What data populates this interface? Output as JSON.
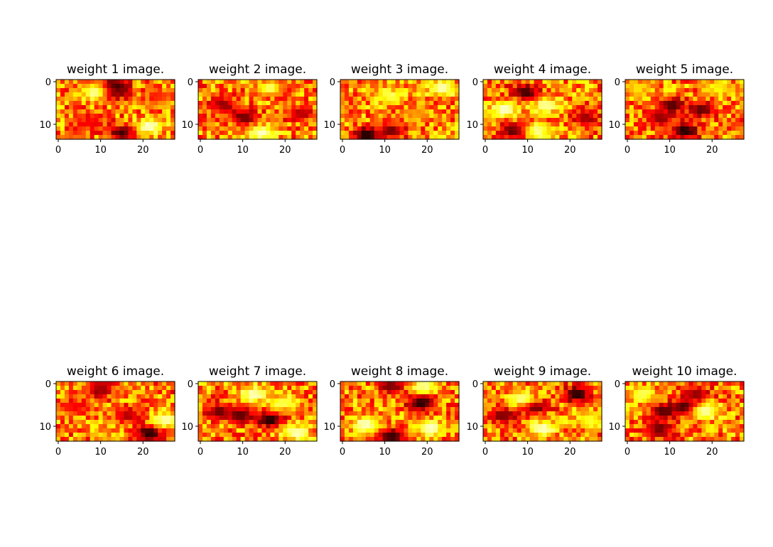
{
  "chart_data": [
    {
      "type": "heatmap",
      "title": "weight 1 image.",
      "rows": 14,
      "cols": 28,
      "xticks": [
        "0",
        "10",
        "20"
      ],
      "yticks": [
        "0",
        "10"
      ],
      "xlim": [
        0,
        28
      ],
      "ylim": [
        14,
        0
      ],
      "colormap": "hot",
      "hotspots": [
        {
          "x": 14,
          "y": 1.5,
          "value": 0.05
        },
        {
          "x": 13,
          "y": 3,
          "value": 0.1
        },
        {
          "x": 15.5,
          "y": 12.5,
          "value": 0.08
        },
        {
          "x": 8,
          "y": 10,
          "value": 0.35
        },
        {
          "x": 22,
          "y": 11,
          "value": 0.97
        },
        {
          "x": 9,
          "y": 3,
          "value": 0.92
        },
        {
          "x": 24,
          "y": 4,
          "value": 0.4
        }
      ]
    },
    {
      "type": "heatmap",
      "title": "weight 2 image.",
      "rows": 14,
      "cols": 28,
      "xticks": [
        "0",
        "10",
        "20"
      ],
      "yticks": [
        "0",
        "10"
      ],
      "xlim": [
        0,
        28
      ],
      "ylim": [
        14,
        0
      ],
      "colormap": "hot",
      "hotspots": [
        {
          "x": 18,
          "y": 2,
          "value": 0.05
        },
        {
          "x": 11,
          "y": 9,
          "value": 0.12
        },
        {
          "x": 15,
          "y": 12.5,
          "value": 0.95
        },
        {
          "x": 17,
          "y": 2,
          "value": 0.9
        },
        {
          "x": 6,
          "y": 6,
          "value": 0.2
        },
        {
          "x": 24,
          "y": 8,
          "value": 0.25
        }
      ]
    },
    {
      "type": "heatmap",
      "title": "weight 3 image.",
      "rows": 14,
      "cols": 28,
      "xticks": [
        "0",
        "10",
        "20"
      ],
      "yticks": [
        "0",
        "10"
      ],
      "xlim": [
        0,
        28
      ],
      "ylim": [
        14,
        0
      ],
      "colormap": "hot",
      "hotspots": [
        {
          "x": 6,
          "y": 13,
          "value": 0.02
        },
        {
          "x": 12,
          "y": 12,
          "value": 0.15
        },
        {
          "x": 24,
          "y": 2,
          "value": 0.95
        },
        {
          "x": 12,
          "y": 4,
          "value": 0.85
        },
        {
          "x": 18,
          "y": 8,
          "value": 0.6
        }
      ]
    },
    {
      "type": "heatmap",
      "title": "weight 4 image.",
      "rows": 14,
      "cols": 28,
      "xticks": [
        "0",
        "10",
        "20"
      ],
      "yticks": [
        "0",
        "10"
      ],
      "xlim": [
        0,
        28
      ],
      "ylim": [
        14,
        0
      ],
      "colormap": "hot",
      "hotspots": [
        {
          "x": 10,
          "y": 3,
          "value": 0.05
        },
        {
          "x": 7,
          "y": 12,
          "value": 0.1
        },
        {
          "x": 24,
          "y": 9,
          "value": 0.2
        },
        {
          "x": 5,
          "y": 7,
          "value": 0.97
        },
        {
          "x": 15,
          "y": 6,
          "value": 0.92
        },
        {
          "x": 13,
          "y": 12,
          "value": 0.9
        }
      ]
    },
    {
      "type": "heatmap",
      "title": "weight 5 image.",
      "rows": 14,
      "cols": 28,
      "xticks": [
        "0",
        "10",
        "20"
      ],
      "yticks": [
        "0",
        "10"
      ],
      "xlim": [
        0,
        28
      ],
      "ylim": [
        14,
        0
      ],
      "colormap": "hot",
      "hotspots": [
        {
          "x": 14,
          "y": 12,
          "value": 0.02
        },
        {
          "x": 11,
          "y": 6,
          "value": 0.1
        },
        {
          "x": 18,
          "y": 7,
          "value": 0.12
        },
        {
          "x": 8,
          "y": 9,
          "value": 0.2
        },
        {
          "x": 22,
          "y": 2,
          "value": 0.75
        },
        {
          "x": 3,
          "y": 2,
          "value": 0.7
        }
      ]
    },
    {
      "type": "heatmap",
      "title": "weight 6 image.",
      "rows": 14,
      "cols": 28,
      "xticks": [
        "0",
        "10",
        "20"
      ],
      "yticks": [
        "0",
        "10"
      ],
      "xlim": [
        0,
        28
      ],
      "ylim": [
        14,
        0
      ],
      "colormap": "hot",
      "hotspots": [
        {
          "x": 22,
          "y": 12,
          "value": 0.02
        },
        {
          "x": 26,
          "y": 9,
          "value": 0.95
        },
        {
          "x": 10,
          "y": 2,
          "value": 0.2
        },
        {
          "x": 17,
          "y": 8,
          "value": 0.25
        },
        {
          "x": 4,
          "y": 6,
          "value": 0.35
        }
      ]
    },
    {
      "type": "heatmap",
      "title": "weight 7 image.",
      "rows": 14,
      "cols": 28,
      "xticks": [
        "0",
        "10",
        "20"
      ],
      "yticks": [
        "0",
        "10"
      ],
      "xlim": [
        0,
        28
      ],
      "ylim": [
        14,
        0
      ],
      "colormap": "hot",
      "hotspots": [
        {
          "x": 17,
          "y": 9,
          "value": 0.02
        },
        {
          "x": 10,
          "y": 8,
          "value": 0.1
        },
        {
          "x": 5,
          "y": 7,
          "value": 0.15
        },
        {
          "x": 13,
          "y": 3,
          "value": 0.95
        },
        {
          "x": 23,
          "y": 12,
          "value": 0.95
        },
        {
          "x": 20,
          "y": 5,
          "value": 0.85
        }
      ]
    },
    {
      "type": "heatmap",
      "title": "weight 8 image.",
      "rows": 14,
      "cols": 28,
      "xticks": [
        "0",
        "10",
        "20"
      ],
      "yticks": [
        "0",
        "10"
      ],
      "xlim": [
        0,
        28
      ],
      "ylim": [
        14,
        0
      ],
      "colormap": "hot",
      "hotspots": [
        {
          "x": 19,
          "y": 5,
          "value": 0.02
        },
        {
          "x": 12,
          "y": 13,
          "value": 0.05
        },
        {
          "x": 12,
          "y": 1,
          "value": 0.15
        },
        {
          "x": 6,
          "y": 10,
          "value": 0.97
        },
        {
          "x": 21,
          "y": 11,
          "value": 0.97
        },
        {
          "x": 20,
          "y": 1,
          "value": 0.9
        }
      ]
    },
    {
      "type": "heatmap",
      "title": "weight 9 image.",
      "rows": 14,
      "cols": 28,
      "xticks": [
        "0",
        "10",
        "20"
      ],
      "yticks": [
        "0",
        "10"
      ],
      "xlim": [
        0,
        28
      ],
      "ylim": [
        14,
        0
      ],
      "colormap": "hot",
      "hotspots": [
        {
          "x": 22,
          "y": 3,
          "value": 0.02
        },
        {
          "x": 12,
          "y": 6,
          "value": 0.1
        },
        {
          "x": 5,
          "y": 8,
          "value": 0.15
        },
        {
          "x": 14,
          "y": 11,
          "value": 0.95
        },
        {
          "x": 9,
          "y": 4,
          "value": 0.9
        },
        {
          "x": 25,
          "y": 9,
          "value": 0.8
        }
      ]
    },
    {
      "type": "heatmap",
      "title": "weight 10 image.",
      "rows": 14,
      "cols": 28,
      "xticks": [
        "0",
        "10",
        "20"
      ],
      "yticks": [
        "0",
        "10"
      ],
      "xlim": [
        0,
        28
      ],
      "ylim": [
        14,
        0
      ],
      "colormap": "hot",
      "hotspots": [
        {
          "x": 14,
          "y": 6,
          "value": 0.02
        },
        {
          "x": 9,
          "y": 7,
          "value": 0.1
        },
        {
          "x": 8,
          "y": 11,
          "value": 0.15
        },
        {
          "x": 17,
          "y": 3,
          "value": 0.2
        },
        {
          "x": 19,
          "y": 7,
          "value": 0.95
        },
        {
          "x": 4,
          "y": 3,
          "value": 0.85
        }
      ]
    }
  ]
}
